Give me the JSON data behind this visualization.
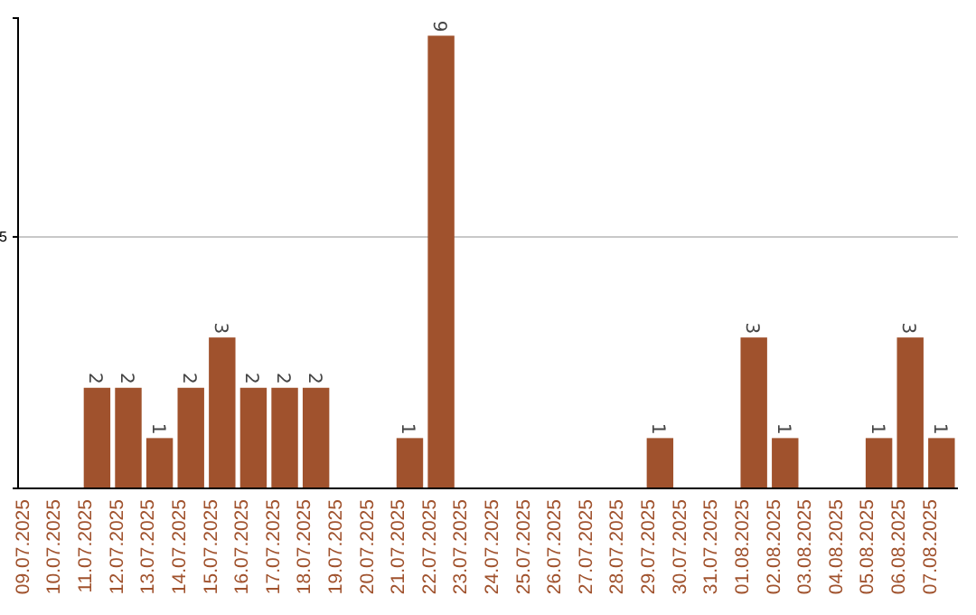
{
  "chart_data": {
    "type": "bar",
    "categories": [
      "09.07.2025",
      "10.07.2025",
      "11.07.2025",
      "12.07.2025",
      "13.07.2025",
      "14.07.2025",
      "15.07.2025",
      "16.07.2025",
      "17.07.2025",
      "18.07.2025",
      "19.07.2025",
      "20.07.2025",
      "21.07.2025",
      "22.07.2025",
      "23.07.2025",
      "24.07.2025",
      "25.07.2025",
      "26.07.2025",
      "27.07.2025",
      "28.07.2025",
      "29.07.2025",
      "30.07.2025",
      "31.07.2025",
      "01.08.2025",
      "02.08.2025",
      "03.08.2025",
      "04.08.2025",
      "05.08.2025",
      "06.08.2025",
      "07.08.2025"
    ],
    "values": [
      0,
      0,
      2,
      2,
      1,
      2,
      3,
      2,
      2,
      2,
      0,
      0,
      1,
      9,
      0,
      0,
      0,
      0,
      0,
      0,
      1,
      0,
      0,
      3,
      1,
      0,
      0,
      1,
      3,
      1
    ],
    "value_labels": [
      null,
      null,
      "2",
      "2",
      "1",
      "2",
      "3",
      "2",
      "2",
      "2",
      null,
      null,
      "1",
      "9",
      null,
      null,
      null,
      null,
      null,
      null,
      "1",
      null,
      null,
      "3",
      "1",
      null,
      null,
      "1",
      "3",
      "1"
    ],
    "color": "#a0522d",
    "ylim": [
      0,
      9.35
    ],
    "yticks": [
      5
    ],
    "grid": "y"
  }
}
